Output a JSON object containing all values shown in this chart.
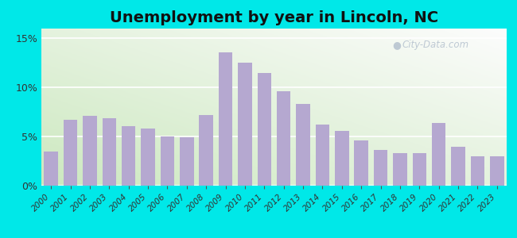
{
  "title": "Unemployment by year in Lincoln, NC",
  "years": [
    2000,
    2001,
    2002,
    2003,
    2004,
    2005,
    2006,
    2007,
    2008,
    2009,
    2010,
    2011,
    2012,
    2013,
    2014,
    2015,
    2016,
    2017,
    2018,
    2019,
    2020,
    2021,
    2022,
    2023
  ],
  "values": [
    3.5,
    6.7,
    7.1,
    6.9,
    6.1,
    5.8,
    5.0,
    4.9,
    7.2,
    13.6,
    12.5,
    11.5,
    9.6,
    8.3,
    6.2,
    5.6,
    4.6,
    3.6,
    3.3,
    3.3,
    6.4,
    4.0,
    3.0,
    3.0
  ],
  "bar_color": "#b5a8d0",
  "bar_edge_color": "none",
  "ylim": [
    0,
    16
  ],
  "yticks": [
    0,
    5,
    10,
    15
  ],
  "ytick_labels": [
    "0%",
    "5%",
    "10%",
    "15%"
  ],
  "outer_background": "#00e8e8",
  "grid_color": "#ffffff",
  "title_fontsize": 14,
  "watermark_text": "City-Data.com",
  "watermark_color": "#b8c4d0",
  "bg_color_topleft": "#d8edd8",
  "bg_color_topright": "#e8f4f4",
  "bg_color_bottomleft": "#c8e8c0",
  "bg_color_bottomright": "#dff0f0"
}
